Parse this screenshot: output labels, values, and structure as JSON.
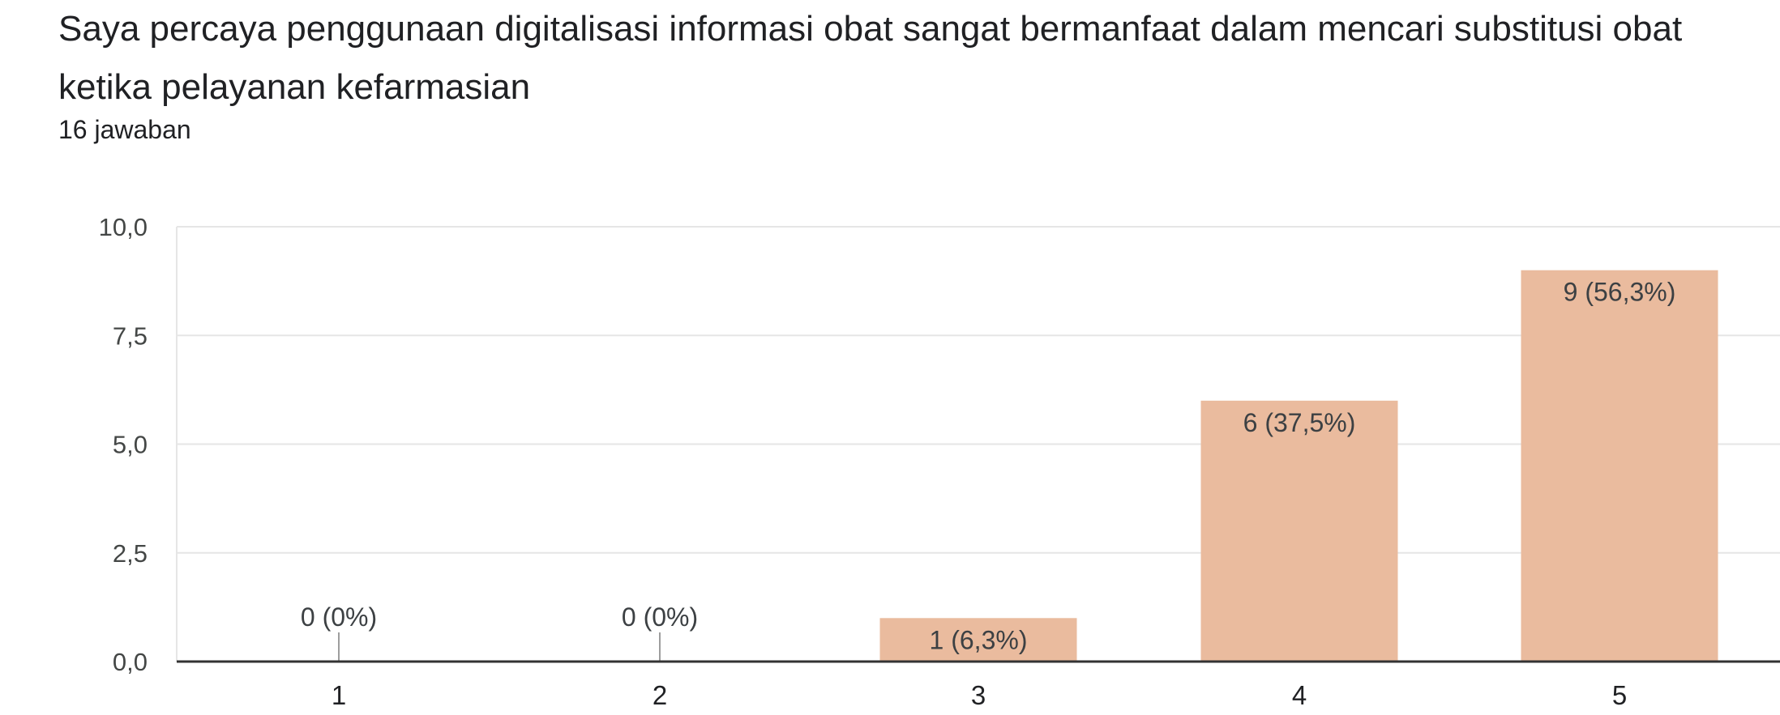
{
  "title": "Saya percaya penggunaan digitalisasi informasi obat sangat bermanfaat dalam mencari substitusi obat ketika pelayanan kefarmasian",
  "subtitle": "16 jawaban",
  "colors": {
    "bar": "#eabb9e",
    "grid": "#e6e6e6",
    "axis": "#333333",
    "zero_marker": "#9e9e9e"
  },
  "chart_data": {
    "type": "bar",
    "categories": [
      "1",
      "2",
      "3",
      "4",
      "5"
    ],
    "values": [
      0,
      0,
      1,
      6,
      9
    ],
    "data_labels": [
      "0 (0%)",
      "0 (0%)",
      "1 (6,3%)",
      "6 (37,5%)",
      "9 (56,3%)"
    ],
    "y_ticks": [
      "0,0",
      "2,5",
      "5,0",
      "7,5",
      "10,0"
    ],
    "ylim": [
      0,
      10
    ],
    "grid": true,
    "legend": "none"
  }
}
